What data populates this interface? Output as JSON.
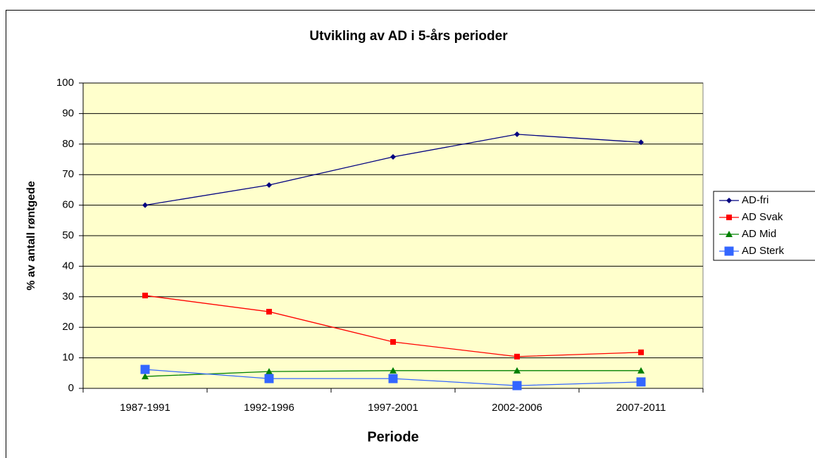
{
  "chart_data": {
    "type": "line",
    "title": "Utvikling av AD i 5-års perioder",
    "x_label": "Periode",
    "y_label": "% av antall røntgede",
    "categories": [
      "1987-1991",
      "1992-1996",
      "1997-2001",
      "2002-2006",
      "2007-2011"
    ],
    "series": [
      {
        "name": "AD-fri",
        "color": "#000080",
        "marker": "diamond",
        "values": [
          60,
          66.6,
          75.8,
          83.2,
          80.6
        ]
      },
      {
        "name": "AD Svak",
        "color": "#ff0000",
        "marker": "square",
        "values": [
          30.4,
          25.1,
          15.2,
          10.4,
          11.8
        ]
      },
      {
        "name": "AD Mid",
        "color": "#008000",
        "marker": "triangle",
        "values": [
          3.9,
          5.5,
          5.8,
          5.8,
          5.8
        ]
      },
      {
        "name": "AD Sterk",
        "color": "#3366ff",
        "marker": "big-square",
        "values": [
          6.2,
          3.2,
          3.2,
          0.9,
          2.1
        ]
      }
    ],
    "ylim": [
      0,
      100
    ],
    "yticks": [
      0,
      10,
      20,
      30,
      40,
      50,
      60,
      70,
      80,
      90,
      100
    ],
    "grid": true,
    "legend": "right",
    "plot_background": "#ffffcc"
  }
}
